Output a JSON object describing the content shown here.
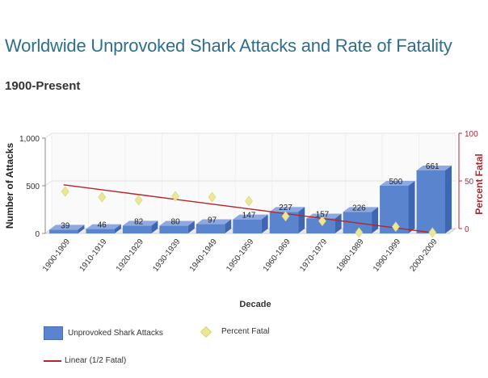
{
  "page": {
    "title": "Worldwide Unprovoked Shark Attacks and Rate of Fatality",
    "subtitle": "1900-Present"
  },
  "colors": {
    "bar": "#5b84cf",
    "bar_top": "#8fa9e0",
    "bar_side": "#3f66b3",
    "fatal_marker": "#eae796",
    "trend_line": "#b5252b",
    "right_axis": "#b5252b",
    "grid": "#e0e0e0"
  },
  "chart_data": {
    "type": "bar",
    "categories": [
      "1900-1909",
      "1910-1919",
      "1920-1929",
      "1930-1939",
      "1940-1949",
      "1950-1959",
      "1960-1969",
      "1970-1979",
      "1980-1989",
      "1990-1999",
      "2000-2009"
    ],
    "series": [
      {
        "name": "Unprovoked Shark Attacks",
        "type": "bar",
        "axis": "left",
        "values": [
          39,
          46,
          82,
          80,
          97,
          147,
          227,
          157,
          226,
          500,
          661
        ]
      },
      {
        "name": "Percent Fatal",
        "type": "scatter",
        "axis": "right",
        "marker": "diamond",
        "values": [
          44,
          38,
          35,
          39,
          38,
          34,
          18,
          13,
          1,
          7,
          1
        ]
      },
      {
        "name": "Linear (1/2 Fatal)",
        "type": "line",
        "axis": "right",
        "values": [
          51,
          46,
          41,
          36,
          31,
          26,
          21,
          16,
          11,
          6,
          1
        ]
      }
    ],
    "xlabel": "Decade",
    "ylabel": "Number of Attacks",
    "ylabel_right": "Percent Fatal",
    "ylim": [
      0,
      1000
    ],
    "ylim_right": [
      0,
      100
    ],
    "yticks": [
      "0",
      "500",
      "1,000"
    ],
    "yticks_right": [
      "0",
      "50",
      "100"
    ],
    "legend_position": "bottom",
    "grid": true
  }
}
